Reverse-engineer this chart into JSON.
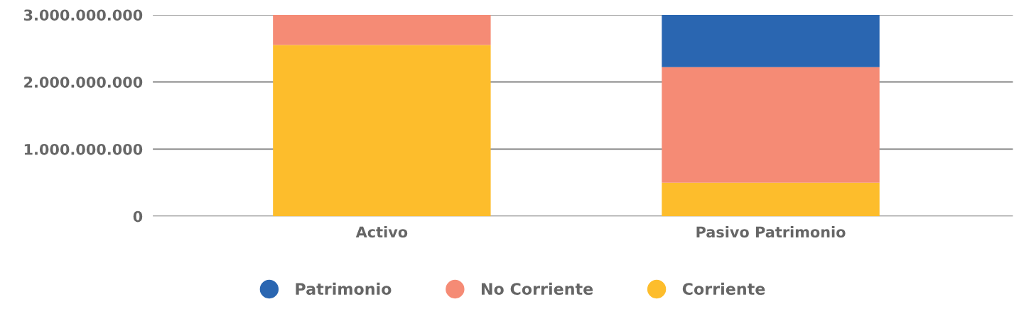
{
  "chart_data": {
    "type": "bar",
    "stacked": true,
    "categories": [
      "Activo",
      "Pasivo Patrimonio"
    ],
    "series": [
      {
        "name": "Corriente",
        "color": "#fdbd2c",
        "values": [
          2550000000,
          500000000
        ]
      },
      {
        "name": "No Corriente",
        "color": "#f58b75",
        "values": [
          450000000,
          1720000000
        ]
      },
      {
        "name": "Patrimonio",
        "color": "#2a66b1",
        "values": [
          0,
          780000000
        ]
      }
    ],
    "ylim": [
      0,
      3000000000
    ],
    "yticks": [
      {
        "value": 0,
        "label": "0"
      },
      {
        "value": 1000000000,
        "label": "1.000.000.000"
      },
      {
        "value": 2000000000,
        "label": "2.000.000.000"
      },
      {
        "value": 3000000000,
        "label": "3.000.000.000"
      }
    ],
    "grid": "y",
    "legend": "bottom"
  }
}
